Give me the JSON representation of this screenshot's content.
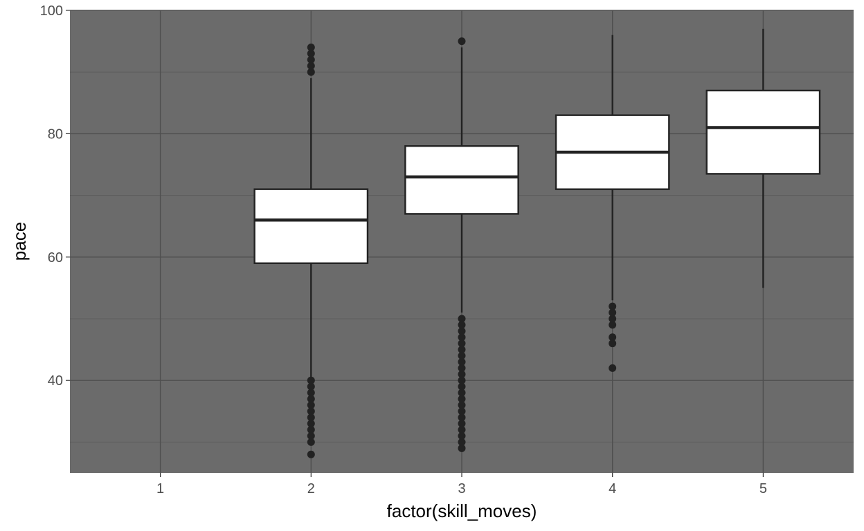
{
  "chart_data": {
    "type": "boxplot",
    "xlabel": "factor(skill_moves)",
    "ylabel": "pace",
    "categories": [
      "1",
      "2",
      "3",
      "4",
      "5"
    ],
    "ylim": [
      25,
      100
    ],
    "y_ticks": [
      40,
      60,
      80,
      100
    ],
    "grid": true,
    "panel_color": "#6b6b6b",
    "box_fill": "#ffffff",
    "line_color": "#222222",
    "boxes": [
      {
        "category": "2",
        "whisker_low": 40,
        "q1": 59,
        "median": 66,
        "q3": 71,
        "whisker_high": 89,
        "outliers": [
          28,
          30,
          31,
          32,
          33,
          34,
          35,
          36,
          37,
          38,
          39,
          40,
          90,
          91,
          92,
          93,
          94
        ]
      },
      {
        "category": "3",
        "whisker_low": 51,
        "q1": 67,
        "median": 73,
        "q3": 78,
        "whisker_high": 94,
        "outliers": [
          29,
          30,
          31,
          32,
          33,
          34,
          35,
          36,
          37,
          38,
          39,
          40,
          41,
          42,
          43,
          44,
          45,
          46,
          47,
          48,
          49,
          50,
          95
        ]
      },
      {
        "category": "4",
        "whisker_low": 53,
        "q1": 71,
        "median": 77,
        "q3": 83,
        "whisker_high": 96,
        "outliers": [
          42,
          46,
          47,
          49,
          50,
          51,
          52
        ]
      },
      {
        "category": "5",
        "whisker_low": 55,
        "q1": 73.5,
        "median": 81,
        "q3": 87,
        "whisker_high": 97,
        "outliers": []
      }
    ]
  }
}
